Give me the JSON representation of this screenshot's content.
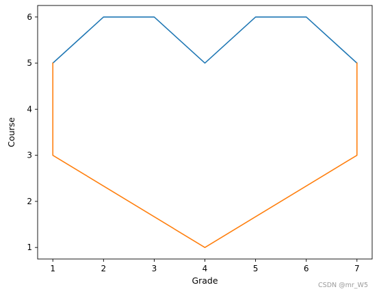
{
  "chart_data": {
    "type": "line",
    "title": "",
    "xlabel": "Grade",
    "ylabel": "Course",
    "xlim": [
      0.7,
      7.3
    ],
    "ylim": [
      0.75,
      6.25
    ],
    "xticks": [
      1,
      2,
      3,
      4,
      5,
      6,
      7
    ],
    "yticks": [
      1,
      2,
      3,
      4,
      5,
      6
    ],
    "grid": false,
    "series": [
      {
        "color": "#1f77b4",
        "x": [
          1,
          2,
          3,
          4,
          5,
          6,
          7
        ],
        "y": [
          5,
          6,
          6,
          5,
          6,
          6,
          5
        ]
      },
      {
        "color": "#ff7f0e",
        "x": [
          1,
          1,
          4,
          7,
          7
        ],
        "y": [
          5,
          3,
          1,
          3,
          5
        ]
      }
    ]
  },
  "watermark": "CSDN @mr_W5"
}
